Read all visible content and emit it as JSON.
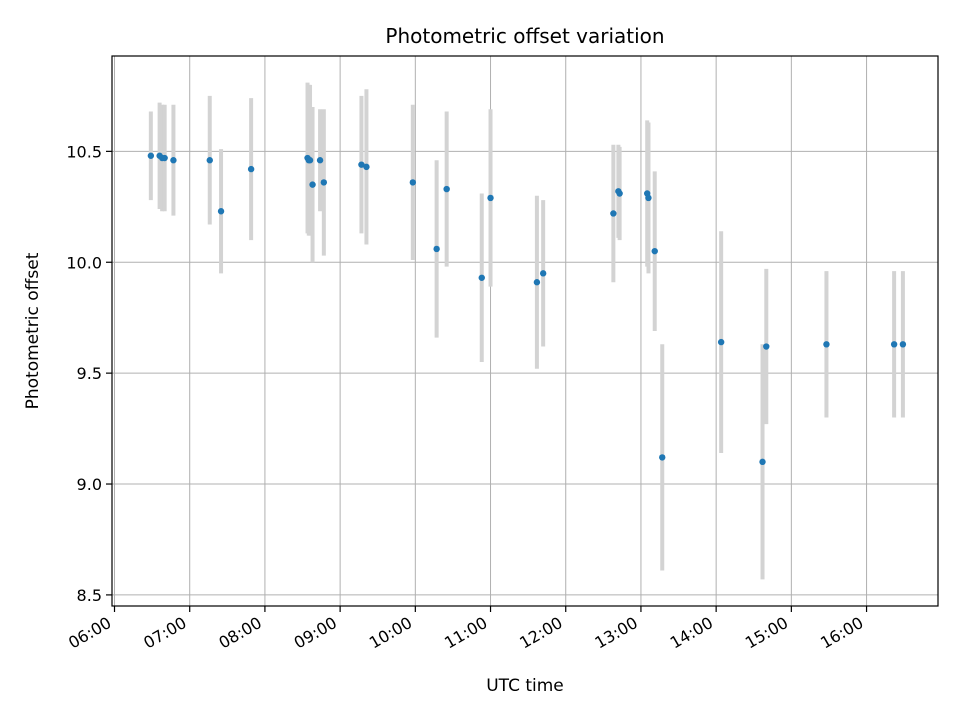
{
  "chart_data": {
    "type": "scatter",
    "title": "Photometric offset variation",
    "xlabel": "UTC time",
    "ylabel": "Photometric offset",
    "grid": true,
    "x_ticks": [
      "06:00",
      "07:00",
      "08:00",
      "09:00",
      "10:00",
      "11:00",
      "12:00",
      "13:00",
      "14:00",
      "15:00",
      "16:00"
    ],
    "y_ticks": [
      "8.5",
      "9.0",
      "9.5",
      "10.0",
      "10.5"
    ],
    "xlim": [
      "05:58",
      "16:57"
    ],
    "ylim": [
      8.45,
      10.93
    ],
    "colors": {
      "point": "#1f77b4",
      "errorbar": "#d3d3d3",
      "grid": "#b0b0b0"
    },
    "points": [
      {
        "x": "06:29",
        "y": 10.48,
        "yerr": 0.2
      },
      {
        "x": "06:36",
        "y": 10.48,
        "yerr": 0.24
      },
      {
        "x": "06:38",
        "y": 10.47,
        "yerr": 0.24
      },
      {
        "x": "06:40",
        "y": 10.47,
        "yerr": 0.24
      },
      {
        "x": "06:47",
        "y": 10.46,
        "yerr": 0.25
      },
      {
        "x": "07:16",
        "y": 10.46,
        "yerr": 0.29
      },
      {
        "x": "07:25",
        "y": 10.23,
        "yerr": 0.28
      },
      {
        "x": "07:49",
        "y": 10.42,
        "yerr": 0.32
      },
      {
        "x": "08:34",
        "y": 10.47,
        "yerr": 0.34
      },
      {
        "x": "08:35",
        "y": 10.46,
        "yerr": 0.34
      },
      {
        "x": "08:36",
        "y": 10.46,
        "yerr": 0.34
      },
      {
        "x": "08:38",
        "y": 10.35,
        "yerr": 0.35
      },
      {
        "x": "08:44",
        "y": 10.46,
        "yerr": 0.23
      },
      {
        "x": "08:47",
        "y": 10.36,
        "yerr": 0.33
      },
      {
        "x": "09:17",
        "y": 10.44,
        "yerr": 0.31
      },
      {
        "x": "09:21",
        "y": 10.43,
        "yerr": 0.35
      },
      {
        "x": "09:58",
        "y": 10.36,
        "yerr": 0.35
      },
      {
        "x": "10:17",
        "y": 10.06,
        "yerr": 0.4
      },
      {
        "x": "10:25",
        "y": 10.33,
        "yerr": 0.35
      },
      {
        "x": "10:53",
        "y": 9.93,
        "yerr": 0.38
      },
      {
        "x": "11:00",
        "y": 10.29,
        "yerr": 0.4
      },
      {
        "x": "11:37",
        "y": 9.91,
        "yerr": 0.39
      },
      {
        "x": "11:42",
        "y": 9.95,
        "yerr": 0.33
      },
      {
        "x": "12:38",
        "y": 10.22,
        "yerr": 0.31
      },
      {
        "x": "12:42",
        "y": 10.32,
        "yerr": 0.21
      },
      {
        "x": "12:43",
        "y": 10.31,
        "yerr": 0.21
      },
      {
        "x": "13:05",
        "y": 10.31,
        "yerr": 0.33
      },
      {
        "x": "13:06",
        "y": 10.29,
        "yerr": 0.34
      },
      {
        "x": "13:11",
        "y": 10.05,
        "yerr": 0.36
      },
      {
        "x": "13:17",
        "y": 9.12,
        "yerr": 0.51
      },
      {
        "x": "14:04",
        "y": 9.64,
        "yerr": 0.5
      },
      {
        "x": "14:37",
        "y": 9.1,
        "yerr": 0.53
      },
      {
        "x": "14:40",
        "y": 9.62,
        "yerr": 0.35
      },
      {
        "x": "15:28",
        "y": 9.63,
        "yerr": 0.33
      },
      {
        "x": "16:22",
        "y": 9.63,
        "yerr": 0.33
      },
      {
        "x": "16:29",
        "y": 9.63,
        "yerr": 0.33
      }
    ]
  }
}
